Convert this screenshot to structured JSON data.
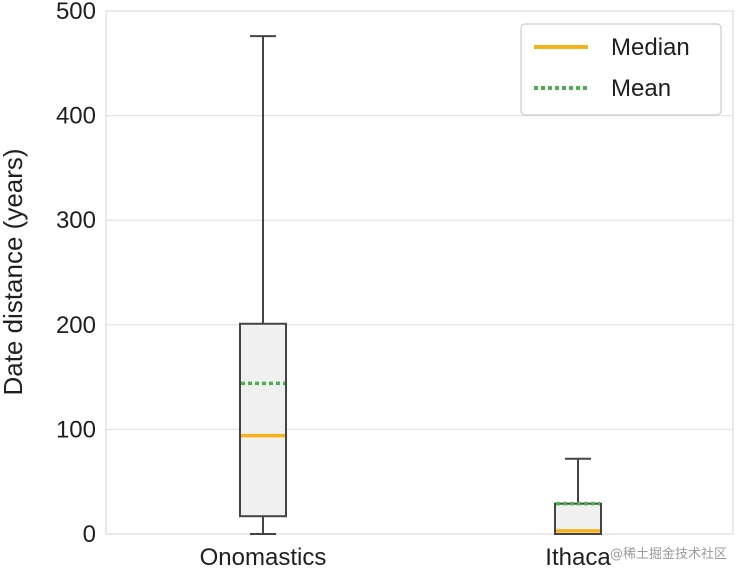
{
  "chart_data": {
    "type": "box",
    "ylabel": "Date distance (years)",
    "ylim": [
      0,
      500
    ],
    "yticks": [
      "0",
      "100",
      "200",
      "300",
      "400",
      "500"
    ],
    "grid": true,
    "categories": [
      "Onomastics",
      "Ithaca"
    ],
    "boxes": [
      {
        "name": "Onomastics",
        "whisker_low": 0,
        "q1": 17,
        "median": 94,
        "mean": 144,
        "q3": 201,
        "whisker_high": 476
      },
      {
        "name": "Ithaca",
        "whisker_low": 0,
        "q1": 0,
        "median": 3,
        "mean": 29,
        "q3": 29,
        "whisker_high": 72
      }
    ],
    "legend": {
      "position": "top-right",
      "entries": [
        {
          "label": "Median",
          "color": "#f5b21a",
          "style": "solid"
        },
        {
          "label": "Mean",
          "color": "#4caf50",
          "style": "dotted"
        }
      ]
    },
    "colors": {
      "box_fill": "#f0f0f0",
      "box_edge": "#444444",
      "median": "#f5b21a",
      "mean": "#4caf50",
      "grid": "#dedede"
    }
  },
  "watermark": "@稀土掘金技术社区"
}
